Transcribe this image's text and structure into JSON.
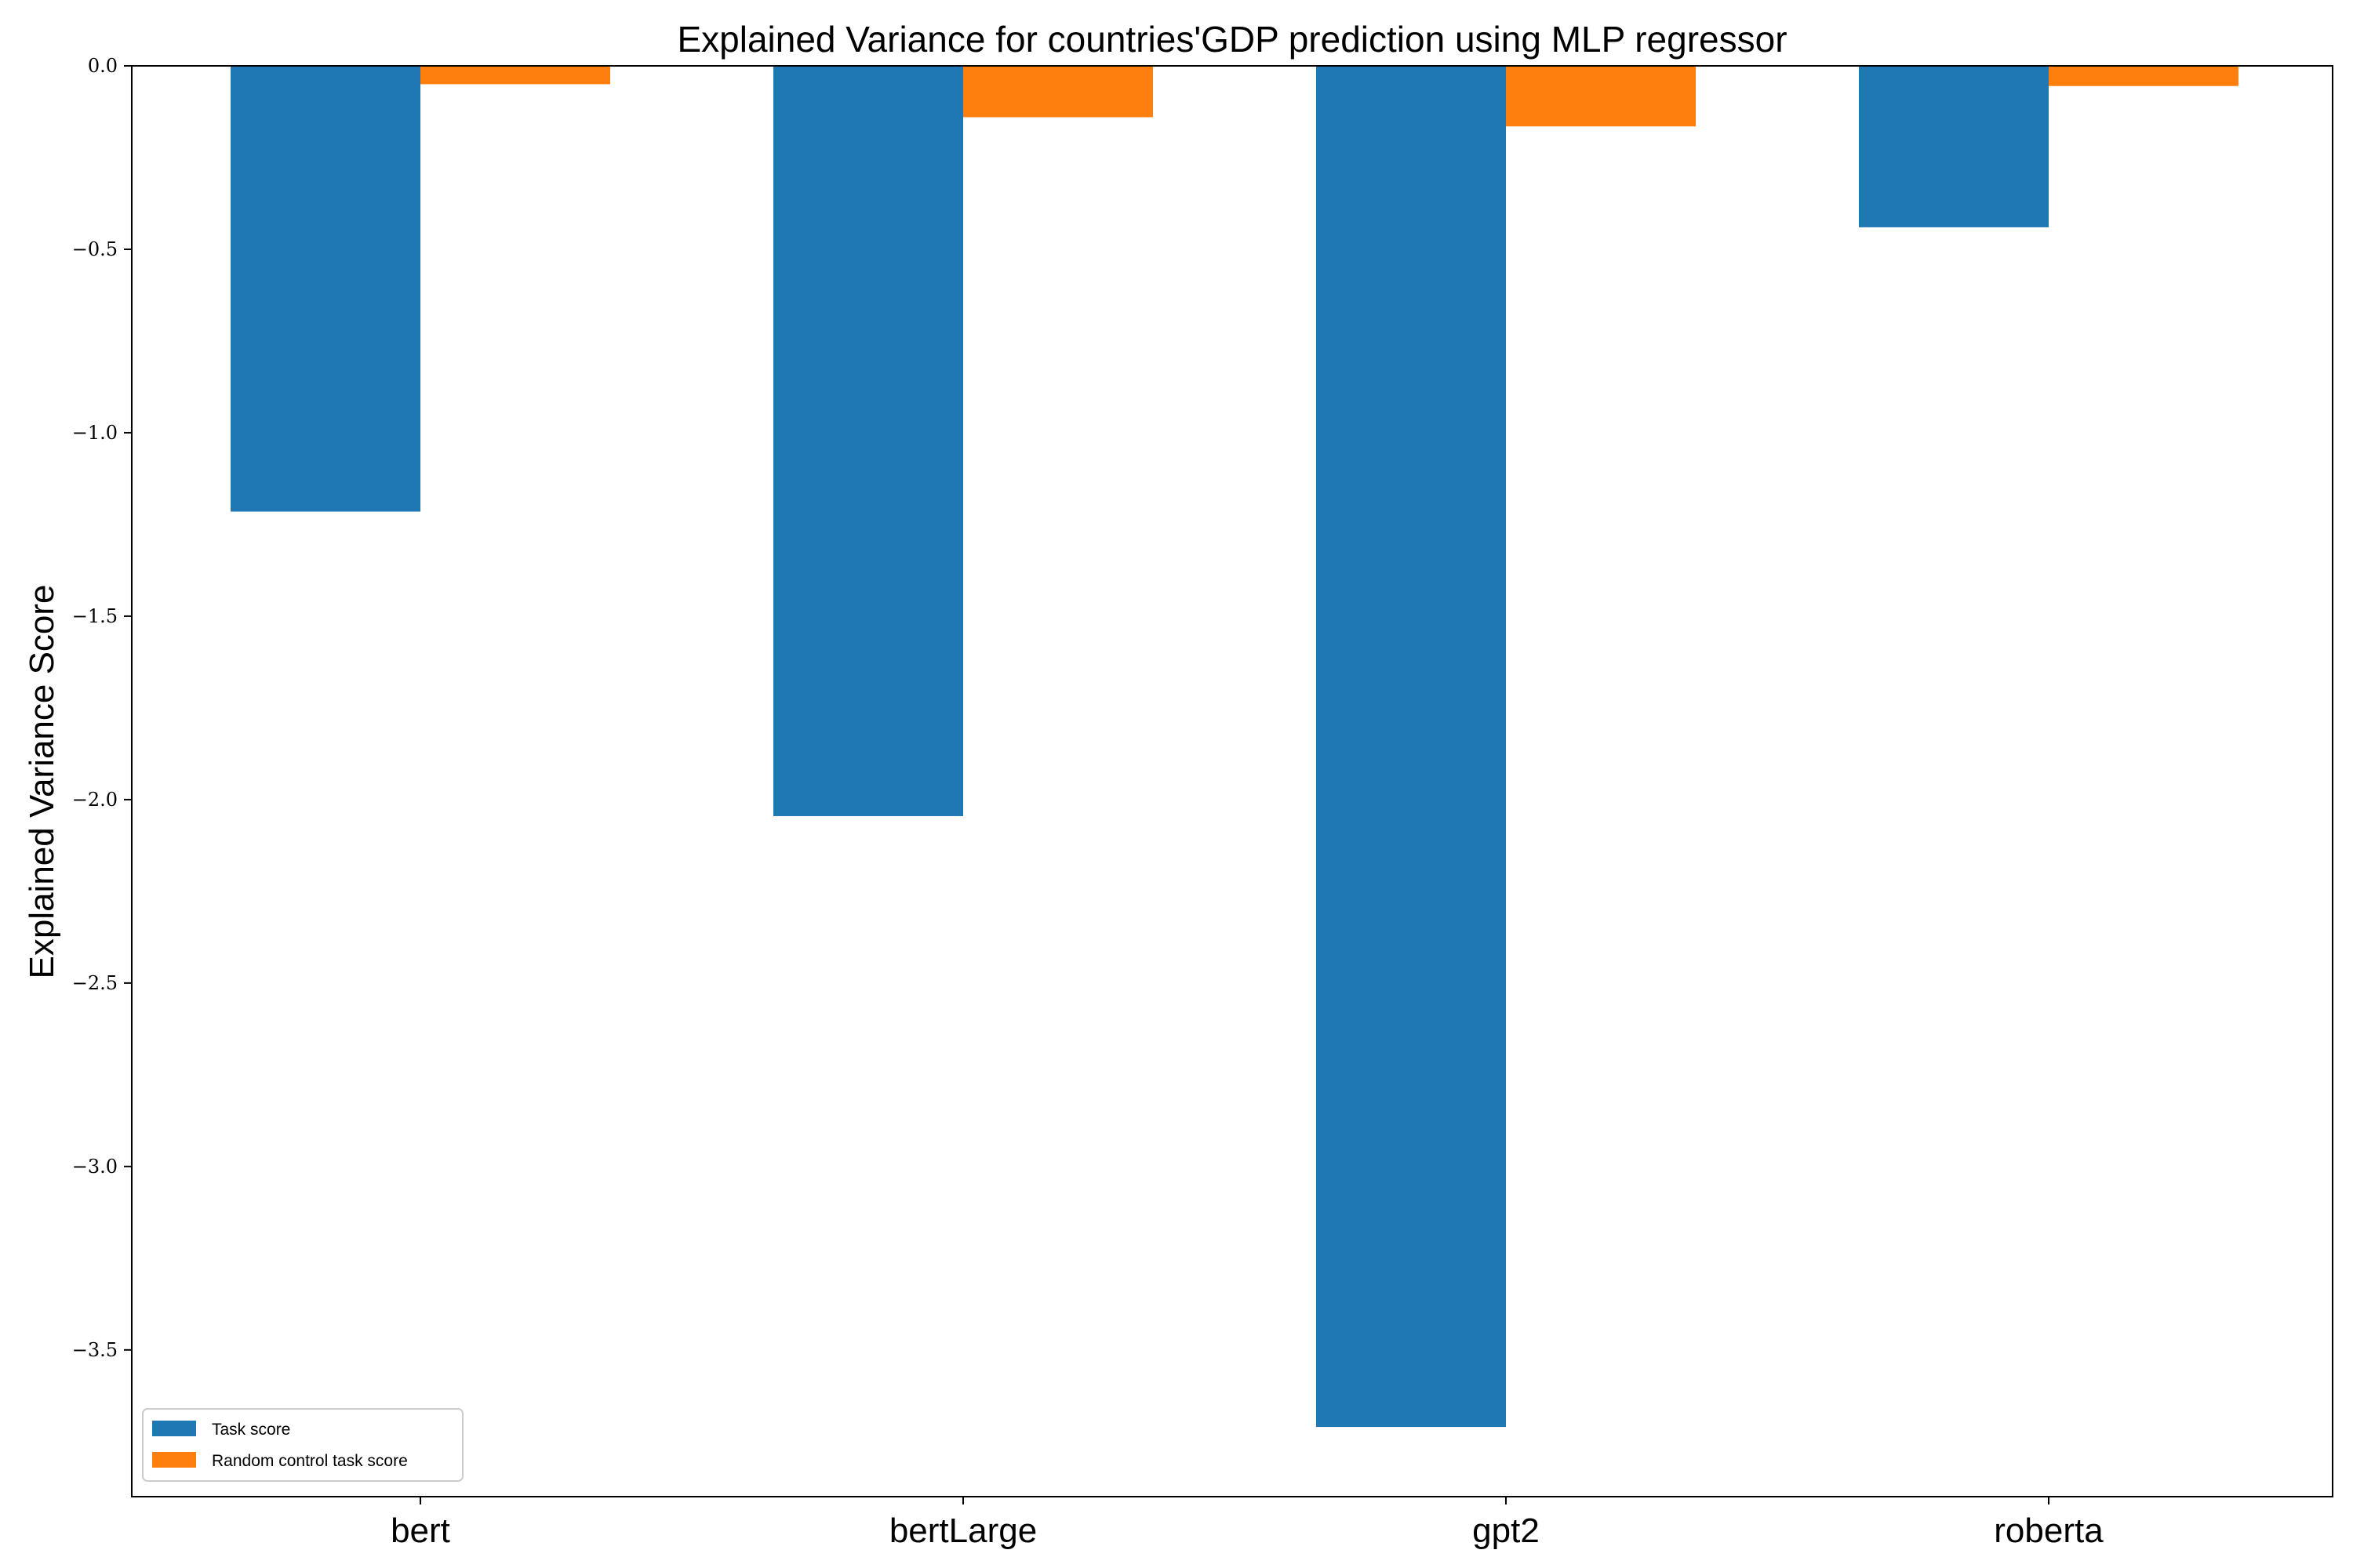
{
  "chart_data": {
    "type": "bar",
    "title": "Explained Variance for countries'GDP prediction using MLP regressor",
    "xlabel": "",
    "ylabel": "Explained Variance Score",
    "categories": [
      "bert",
      "bertLarge",
      "gpt2",
      "roberta"
    ],
    "series": [
      {
        "name": "Task score",
        "values": [
          -1.215,
          -2.045,
          -3.71,
          -0.44
        ],
        "color": "#1f77b4"
      },
      {
        "name": "Random control task score",
        "values": [
          -0.05,
          -0.14,
          -0.165,
          -0.055
        ],
        "color": "#ff7f0e"
      }
    ],
    "ylim": [
      -3.9,
      0.0
    ],
    "yticks": [
      0.0,
      -0.5,
      -1.0,
      -1.5,
      -2.0,
      -2.5,
      -3.0,
      -3.5
    ],
    "ytick_labels": [
      "0.0",
      "−0.5",
      "−1.0",
      "−1.5",
      "−2.0",
      "−2.5",
      "−3.0",
      "−3.5"
    ],
    "legend_position": "lower-left",
    "grid": false
  }
}
